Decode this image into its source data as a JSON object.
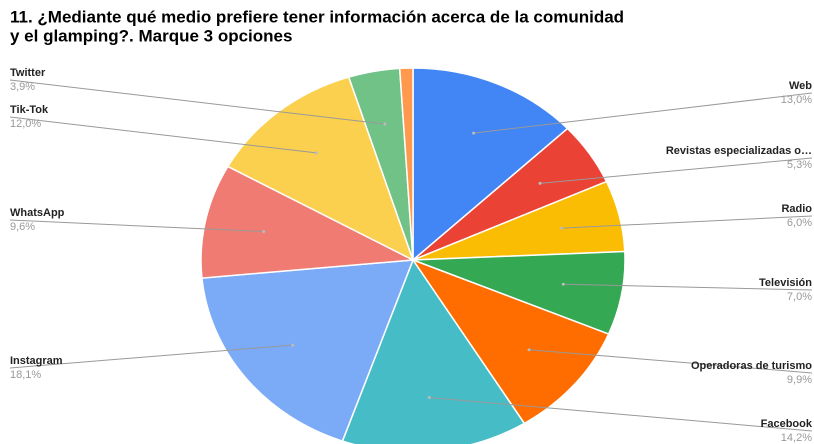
{
  "chart_data": {
    "type": "pie",
    "title": [
      "11.  ¿Mediante qué medio prefiere tener información acerca de la comunidad",
      "y el glamping?. Marque 3 opciones"
    ],
    "categories": [
      "Web",
      "Revistas especializadas o…",
      "Radio",
      "Televisión",
      "Operadoras de turismo",
      "Facebook",
      "Instagram",
      "WhatsApp",
      "Tik-Tok",
      "Twitter",
      null
    ],
    "values": [
      13.0,
      5.3,
      6.0,
      7.0,
      9.9,
      14.2,
      18.1,
      9.6,
      12.0,
      3.9,
      1.0
    ],
    "value_labels": [
      "13,0%",
      "5,3%",
      "6,0%",
      "7,0%",
      "9,9%",
      "14,2%",
      "18,1%",
      "9,6%",
      "12,0%",
      "3,9%",
      null
    ],
    "colors": [
      "#4285f4",
      "#ea4335",
      "#fbbc04",
      "#34a853",
      "#ff6d01",
      "#46bdc6",
      "#7baaf7",
      "#f07b72",
      "#fcd04f",
      "#71c287",
      "#ff994d"
    ]
  }
}
